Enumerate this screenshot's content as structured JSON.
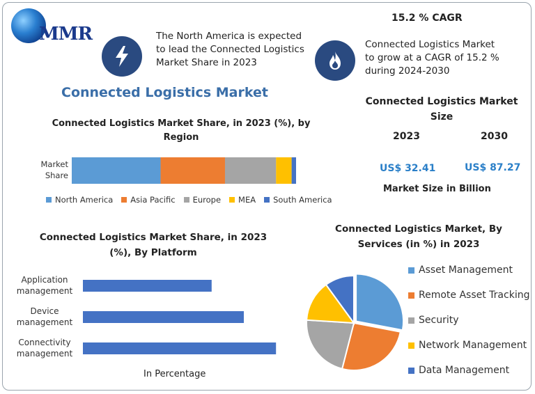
{
  "logo": {
    "text": "MMR"
  },
  "header": {
    "cagr_title": "15.2 % CAGR",
    "na_text_lines": [
      "The North America is expected",
      "to lead the Connected Logistics",
      "Market Share in 2023"
    ],
    "cagr_text_lines": [
      "Connected Logistics Market",
      "to grow at a CAGR of 15.2 %",
      "during 2024-2030"
    ],
    "bolt_icon": "lightning-bolt-icon",
    "flame_icon": "flame-icon",
    "icon_bg_color": "#2a4a80"
  },
  "main_title": "Connected Logistics Market",
  "market_size": {
    "title_lines": [
      "Connected Logistics Market",
      "Size"
    ],
    "year_a": "2023",
    "year_b": "2030",
    "value_a": "US$ 32.41",
    "value_b": "US$ 87.27",
    "caption": "Market Size in Billion"
  },
  "chart_data": [
    {
      "type": "bar",
      "orientation": "horizontal-stacked",
      "title_lines": [
        "Connected Logistics Market Share, in 2023 (%), by",
        "Region"
      ],
      "category_label_lines": [
        "Market",
        "Share"
      ],
      "series": [
        {
          "name": "North America",
          "value": 40,
          "color": "#5b9bd5"
        },
        {
          "name": "Asia Pacific",
          "value": 29,
          "color": "#ed7d31"
        },
        {
          "name": "Europe",
          "value": 23,
          "color": "#a5a5a5"
        },
        {
          "name": "MEA",
          "value": 7,
          "color": "#ffc000"
        },
        {
          "name": "South America",
          "value": 2,
          "color": "#4472c4"
        }
      ],
      "legend": "bottom"
    },
    {
      "type": "bar",
      "orientation": "horizontal",
      "title_lines": [
        "Connected Logistics Market Share, in 2023",
        "(%), By Platform"
      ],
      "categories": [
        {
          "label_lines": [
            "Application",
            "management"
          ],
          "value": 28
        },
        {
          "label_lines": [
            "Device",
            "management"
          ],
          "value": 35
        },
        {
          "label_lines": [
            "Connectivity",
            "management"
          ],
          "value": 42
        }
      ],
      "xlabel": "In Percentage",
      "xlim": [
        0,
        50
      ],
      "color": "#4472c4"
    },
    {
      "type": "pie",
      "title_lines": [
        "Connected Logistics Market, By",
        "Services (in %) in 2023"
      ],
      "slices": [
        {
          "name": "Asset Management",
          "value": 28,
          "color": "#5b9bd5"
        },
        {
          "name": "Remote Asset Tracking",
          "value": 26,
          "color": "#ed7d31"
        },
        {
          "name": "Security",
          "value": 22,
          "color": "#a5a5a5"
        },
        {
          "name": "Network Management",
          "value": 14,
          "color": "#ffc000"
        },
        {
          "name": "Data Management",
          "value": 10,
          "color": "#4472c4"
        }
      ],
      "legend": "right"
    }
  ]
}
